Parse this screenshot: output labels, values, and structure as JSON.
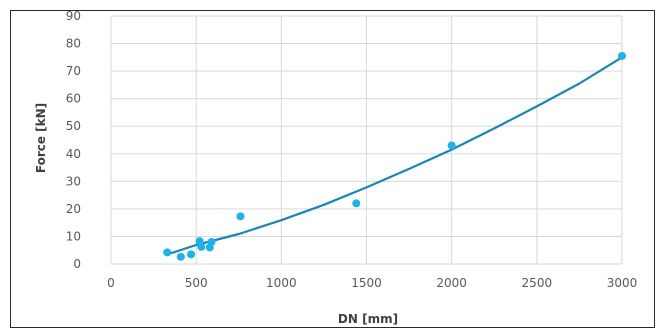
{
  "chart_data": {
    "type": "scatter",
    "title": "",
    "xlabel": "DN [mm]",
    "ylabel": "Force [kN]",
    "xlim": [
      0,
      3000
    ],
    "ylim": [
      0,
      90
    ],
    "x_ticks": [
      0,
      500,
      1000,
      1500,
      2000,
      2500,
      3000
    ],
    "y_ticks": [
      0,
      10,
      20,
      30,
      40,
      50,
      60,
      70,
      80,
      90
    ],
    "grid": true,
    "legend": "none",
    "colors": {
      "points": "#1bb3e8",
      "trendline": "#1a86b8",
      "grid": "#d9d9d9",
      "frame": "#2b2b2b"
    },
    "series": [
      {
        "kind": "points",
        "x": [
          330,
          410,
          470,
          520,
          530,
          580,
          590,
          760,
          1440,
          2000,
          3000
        ],
        "y": [
          4.2,
          2.6,
          3.5,
          8.3,
          6.2,
          6.0,
          8.0,
          17.3,
          22.0,
          43.0,
          75.5
        ]
      },
      {
        "kind": "trendline",
        "x": [
          330,
          500,
          750,
          1000,
          1250,
          1500,
          1750,
          2000,
          2250,
          2500,
          2750,
          3000
        ],
        "y": [
          3.5,
          6.9,
          10.9,
          15.9,
          21.5,
          27.8,
          34.5,
          41.5,
          49.2,
          57.2,
          65.5,
          75.0
        ]
      }
    ]
  }
}
